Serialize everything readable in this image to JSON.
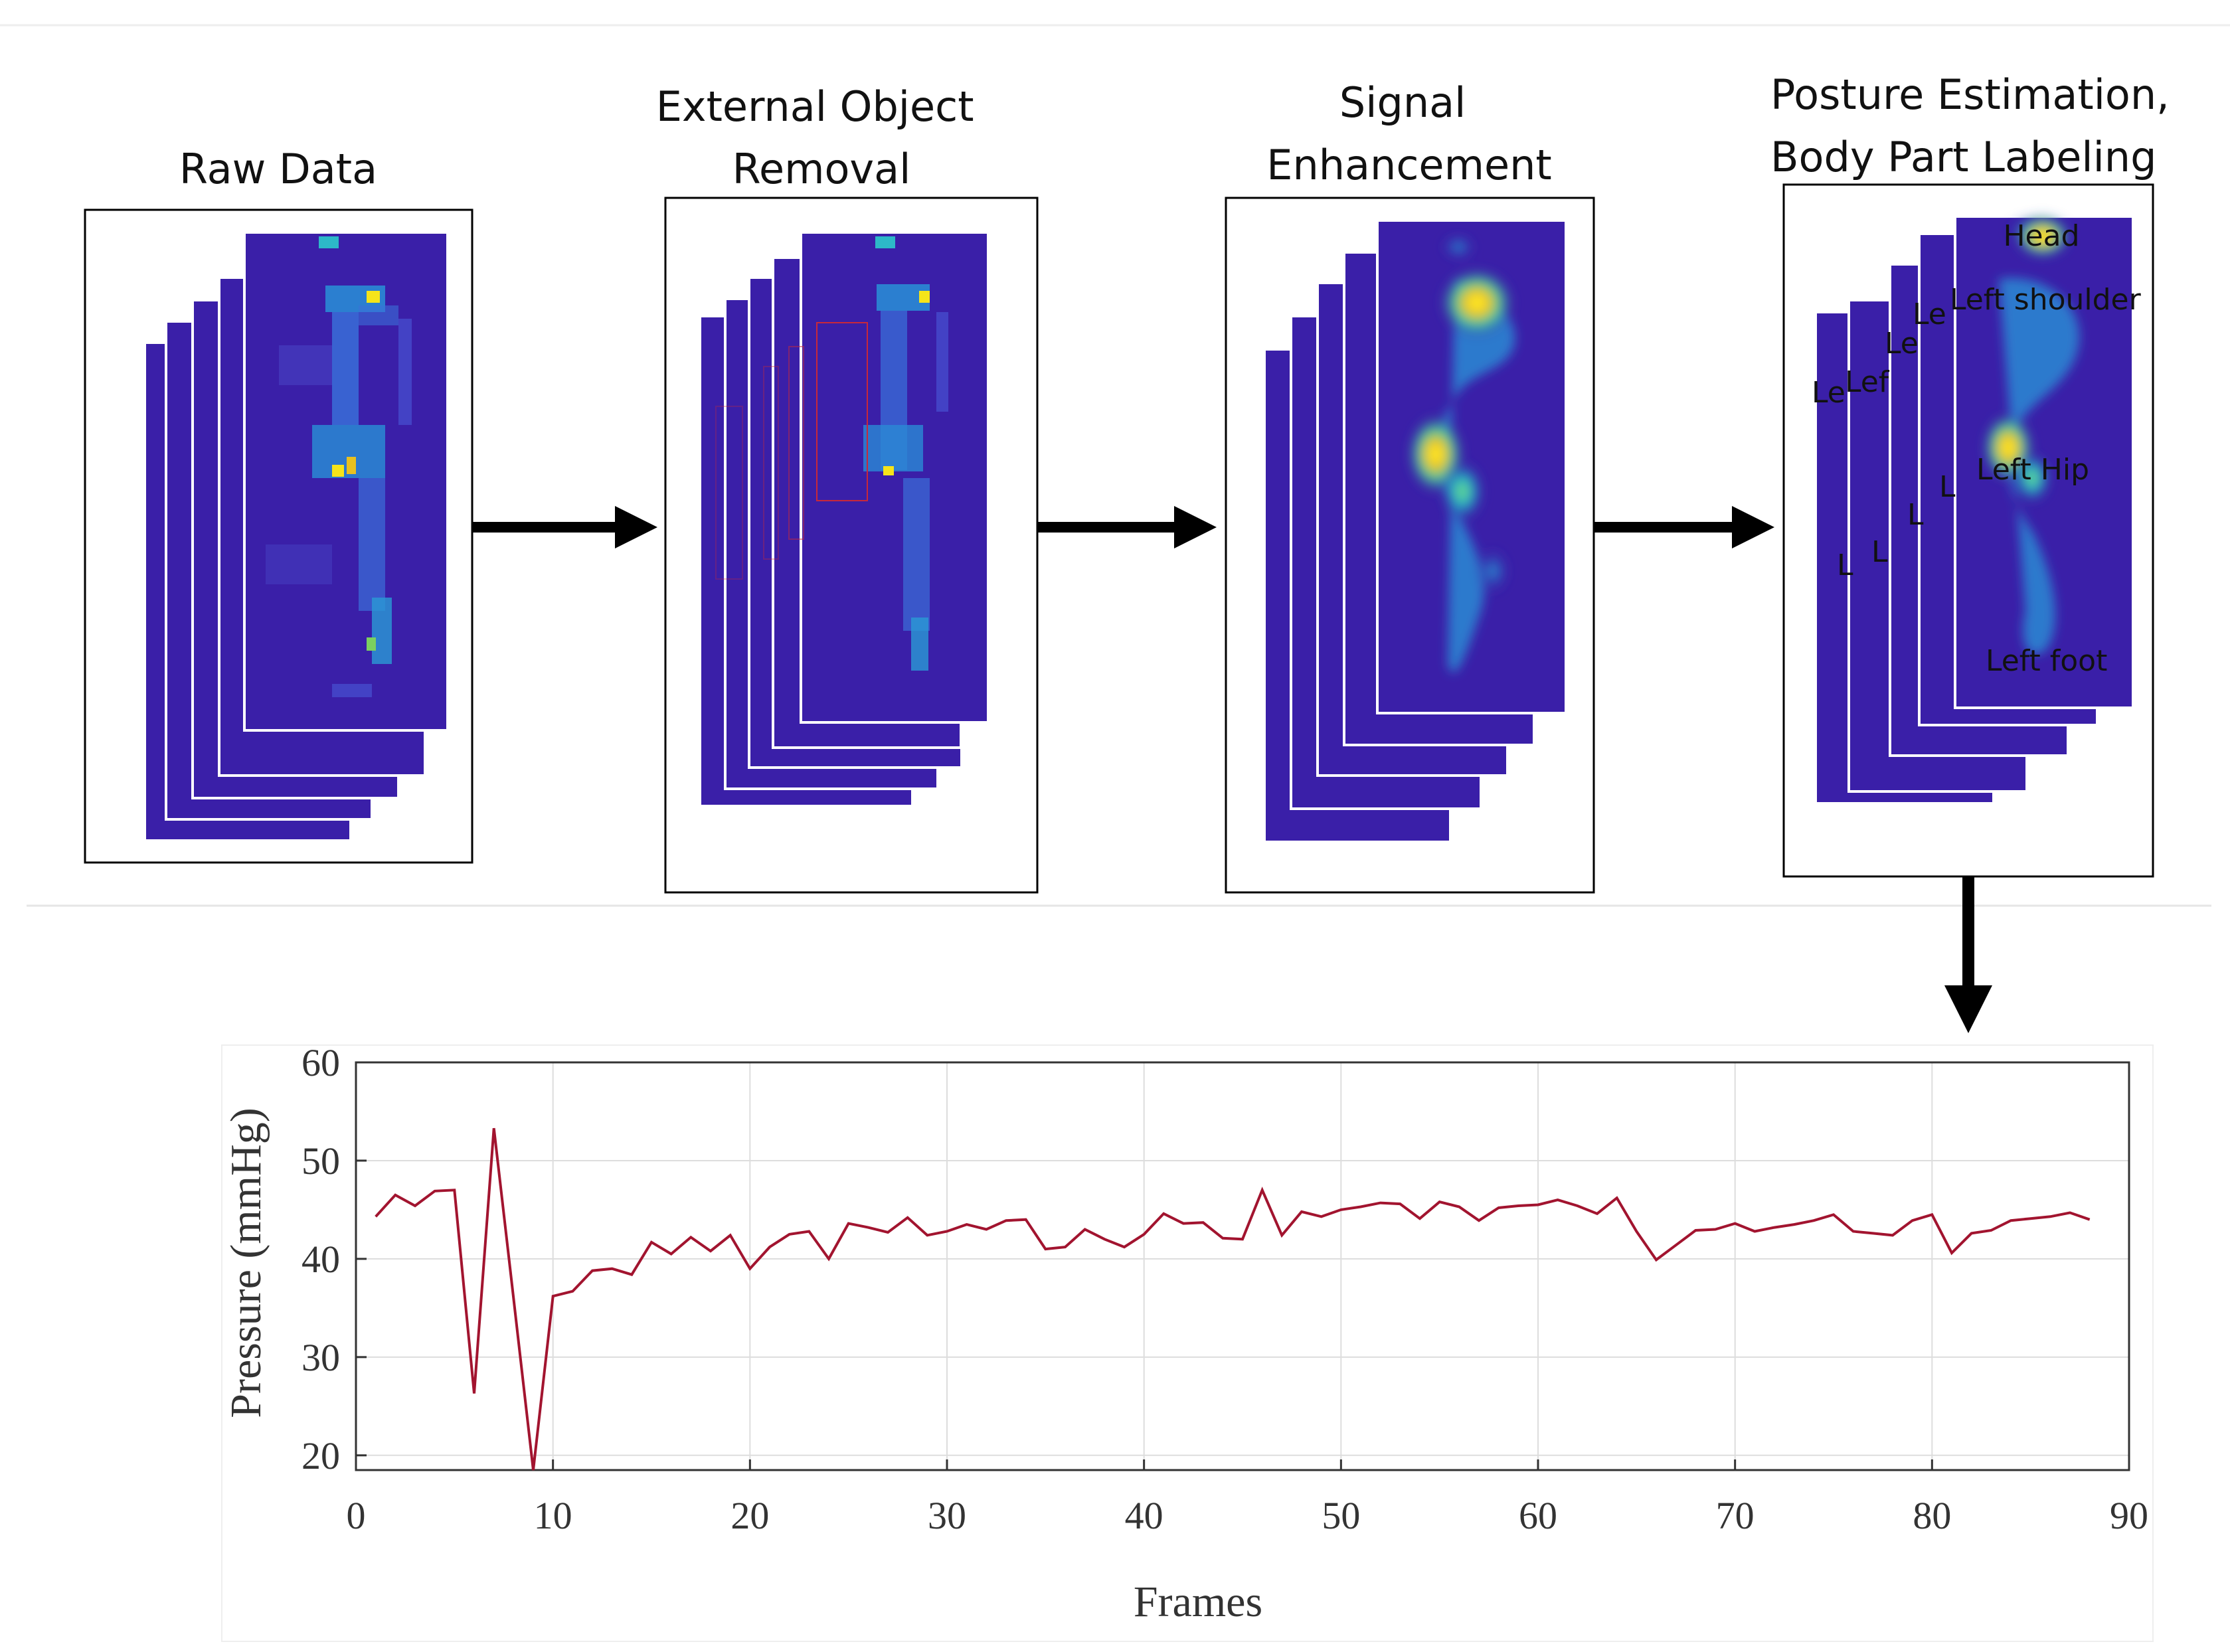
{
  "pipeline": {
    "stages": [
      {
        "title_lines": [
          "Raw Data"
        ]
      },
      {
        "title_lines": [
          "External Object",
          "Removal"
        ]
      },
      {
        "title_lines": [
          "Signal",
          "Enhancement"
        ]
      },
      {
        "title_lines": [
          "Posture Estimation,",
          "Body Part Labeling"
        ]
      }
    ],
    "body_part_labels": [
      "Head",
      "Left shoulder",
      "Left Hip",
      "Left foot"
    ],
    "background_fragments": [
      "Le",
      "Lef",
      "Le",
      "Le",
      "L",
      "L",
      "L",
      "L"
    ]
  },
  "colors": {
    "heatmap_bg": "#3a1fa8",
    "arrow": "#000000",
    "series": "#a2142f",
    "axis": "#333333",
    "grid": "#dddddd"
  },
  "chart_data": {
    "type": "line",
    "title": "",
    "xlabel": "Frames",
    "ylabel": "Pressure (mmHg)",
    "xlim": [
      0,
      90
    ],
    "ylim": [
      18.5,
      60
    ],
    "xticks": [
      0,
      10,
      20,
      30,
      40,
      50,
      60,
      70,
      80,
      90
    ],
    "yticks": [
      20,
      30,
      40,
      50,
      60
    ],
    "grid": true,
    "series": [
      {
        "name": "Pressure",
        "x": [
          1,
          2,
          3,
          4,
          5,
          6,
          7,
          8,
          9,
          10,
          11,
          12,
          13,
          14,
          15,
          16,
          17,
          18,
          19,
          20,
          21,
          22,
          23,
          24,
          25,
          26,
          27,
          28,
          29,
          30,
          31,
          32,
          33,
          34,
          35,
          36,
          37,
          38,
          39,
          40,
          41,
          42,
          43,
          44,
          45,
          46,
          47,
          48,
          49,
          50,
          51,
          52,
          53,
          54,
          55,
          56,
          57,
          58,
          59,
          60,
          61,
          62,
          63,
          64,
          65,
          66,
          67,
          68,
          69,
          70,
          71,
          72,
          73,
          74,
          75,
          76,
          77,
          78,
          79,
          80,
          81,
          82,
          83,
          84,
          85,
          86,
          87,
          88
        ],
        "y": [
          44.3,
          46.5,
          45.4,
          46.9,
          47.0,
          26.3,
          53.3,
          36.0,
          18.5,
          36.2,
          36.7,
          38.8,
          39.0,
          38.4,
          41.7,
          40.5,
          42.2,
          40.8,
          42.4,
          39.0,
          41.2,
          42.5,
          42.8,
          40.0,
          43.6,
          43.2,
          42.7,
          44.2,
          42.4,
          42.8,
          43.5,
          43.0,
          43.9,
          44.0,
          41.0,
          41.2,
          43.0,
          42.0,
          41.2,
          42.5,
          44.6,
          43.6,
          43.7,
          42.1,
          42.0,
          47.0,
          42.4,
          44.8,
          44.3,
          45.0,
          45.3,
          45.7,
          45.6,
          44.1,
          45.8,
          45.3,
          43.9,
          45.2,
          45.4,
          45.5,
          46.0,
          45.4,
          44.6,
          46.2,
          42.8,
          39.9,
          41.4,
          42.9,
          43.0,
          43.6,
          42.8,
          43.2,
          43.5,
          43.9,
          44.5,
          42.8,
          42.6,
          42.4,
          43.9,
          44.5,
          40.6,
          42.6,
          42.9,
          43.9,
          44.1,
          44.3,
          44.7,
          44.0
        ]
      }
    ]
  }
}
